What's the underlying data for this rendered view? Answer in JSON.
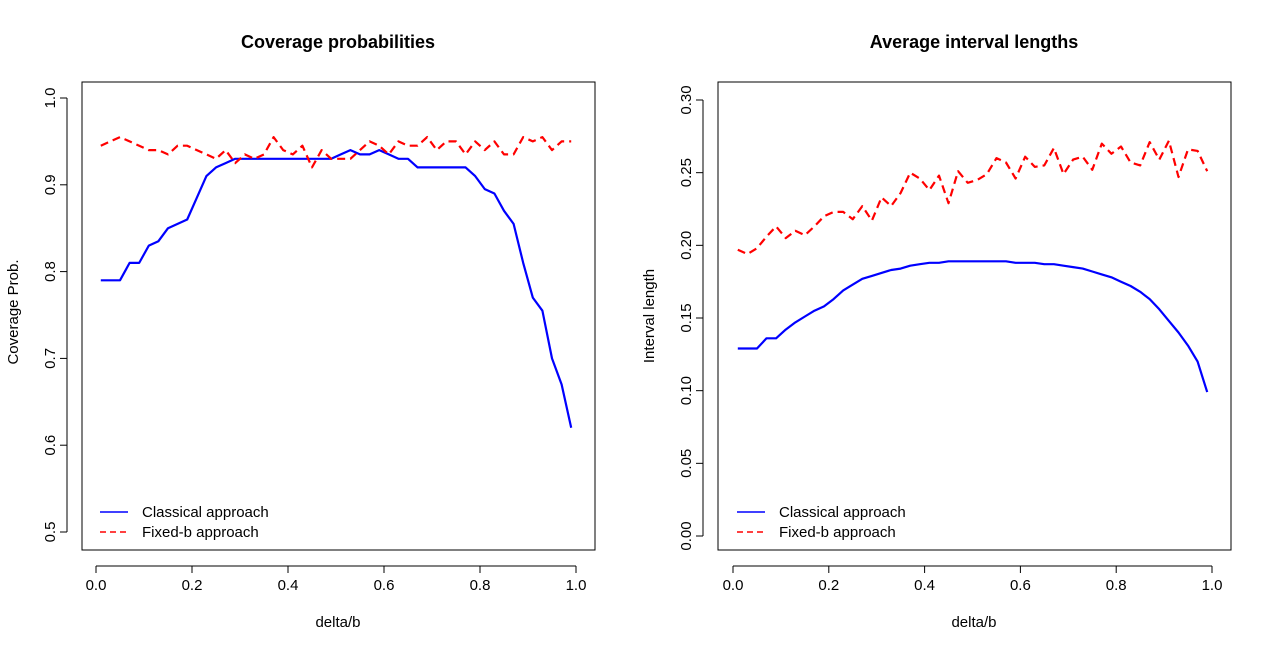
{
  "chart_data": [
    {
      "type": "line",
      "title": "Coverage probabilities",
      "xlabel": "delta/b",
      "ylabel": "Coverage Prob.",
      "xlim": [
        0.0,
        1.0
      ],
      "ylim": [
        0.5,
        1.0
      ],
      "xticks": [
        "0.0",
        "0.2",
        "0.4",
        "0.6",
        "0.8",
        "1.0"
      ],
      "yticks": [
        "0.5",
        "0.6",
        "0.7",
        "0.8",
        "0.9",
        "1.0"
      ],
      "legend_position": "bottom-left",
      "series": [
        {
          "name": "Classical approach",
          "color": "#0000ff",
          "dash": "solid",
          "x": [
            0.01,
            0.03,
            0.05,
            0.07,
            0.09,
            0.11,
            0.13,
            0.15,
            0.17,
            0.19,
            0.21,
            0.23,
            0.25,
            0.27,
            0.29,
            0.31,
            0.33,
            0.35,
            0.37,
            0.39,
            0.41,
            0.43,
            0.45,
            0.47,
            0.49,
            0.51,
            0.53,
            0.55,
            0.57,
            0.59,
            0.61,
            0.63,
            0.65,
            0.67,
            0.69,
            0.71,
            0.73,
            0.75,
            0.77,
            0.79,
            0.81,
            0.83,
            0.85,
            0.87,
            0.89,
            0.91,
            0.93,
            0.95,
            0.97,
            0.99
          ],
          "y": [
            0.79,
            0.79,
            0.79,
            0.81,
            0.81,
            0.83,
            0.835,
            0.85,
            0.855,
            0.86,
            0.885,
            0.91,
            0.92,
            0.925,
            0.93,
            0.93,
            0.93,
            0.93,
            0.93,
            0.93,
            0.93,
            0.93,
            0.93,
            0.93,
            0.93,
            0.935,
            0.94,
            0.935,
            0.935,
            0.94,
            0.935,
            0.93,
            0.93,
            0.92,
            0.92,
            0.92,
            0.92,
            0.92,
            0.92,
            0.91,
            0.895,
            0.89,
            0.87,
            0.855,
            0.81,
            0.77,
            0.755,
            0.7,
            0.67,
            0.62
          ]
        },
        {
          "name": "Fixed-b approach",
          "color": "#ff0000",
          "dash": "dashed",
          "x": [
            0.01,
            0.03,
            0.05,
            0.07,
            0.09,
            0.11,
            0.13,
            0.15,
            0.17,
            0.19,
            0.21,
            0.23,
            0.25,
            0.27,
            0.29,
            0.31,
            0.33,
            0.35,
            0.37,
            0.39,
            0.41,
            0.43,
            0.45,
            0.47,
            0.49,
            0.51,
            0.53,
            0.55,
            0.57,
            0.59,
            0.61,
            0.63,
            0.65,
            0.67,
            0.69,
            0.71,
            0.73,
            0.75,
            0.77,
            0.79,
            0.81,
            0.83,
            0.85,
            0.87,
            0.89,
            0.91,
            0.93,
            0.95,
            0.97,
            0.99
          ],
          "y": [
            0.945,
            0.95,
            0.955,
            0.95,
            0.945,
            0.94,
            0.94,
            0.935,
            0.945,
            0.945,
            0.94,
            0.935,
            0.93,
            0.94,
            0.925,
            0.935,
            0.93,
            0.935,
            0.955,
            0.94,
            0.935,
            0.945,
            0.92,
            0.94,
            0.93,
            0.93,
            0.93,
            0.94,
            0.95,
            0.945,
            0.935,
            0.95,
            0.945,
            0.945,
            0.955,
            0.94,
            0.95,
            0.95,
            0.935,
            0.95,
            0.94,
            0.95,
            0.935,
            0.935,
            0.955,
            0.95,
            0.955,
            0.94,
            0.95,
            0.95
          ]
        }
      ]
    },
    {
      "type": "line",
      "title": "Average interval lengths",
      "xlabel": "delta/b",
      "ylabel": "Interval length",
      "xlim": [
        0.0,
        1.0
      ],
      "ylim": [
        0.0,
        0.3
      ],
      "xticks": [
        "0.0",
        "0.2",
        "0.4",
        "0.6",
        "0.8",
        "1.0"
      ],
      "yticks": [
        "0.00",
        "0.05",
        "0.10",
        "0.15",
        "0.20",
        "0.25",
        "0.30"
      ],
      "legend_position": "bottom-left",
      "series": [
        {
          "name": "Classical approach",
          "color": "#0000ff",
          "dash": "solid",
          "x": [
            0.01,
            0.03,
            0.05,
            0.07,
            0.09,
            0.11,
            0.13,
            0.15,
            0.17,
            0.19,
            0.21,
            0.23,
            0.25,
            0.27,
            0.29,
            0.31,
            0.33,
            0.35,
            0.37,
            0.39,
            0.41,
            0.43,
            0.45,
            0.47,
            0.49,
            0.51,
            0.53,
            0.55,
            0.57,
            0.59,
            0.61,
            0.63,
            0.65,
            0.67,
            0.69,
            0.71,
            0.73,
            0.75,
            0.77,
            0.79,
            0.81,
            0.83,
            0.85,
            0.87,
            0.89,
            0.91,
            0.93,
            0.95,
            0.97,
            0.99
          ],
          "y": [
            0.129,
            0.129,
            0.129,
            0.136,
            0.136,
            0.142,
            0.147,
            0.151,
            0.155,
            0.158,
            0.163,
            0.169,
            0.173,
            0.177,
            0.179,
            0.181,
            0.183,
            0.184,
            0.186,
            0.187,
            0.188,
            0.188,
            0.189,
            0.189,
            0.189,
            0.189,
            0.189,
            0.189,
            0.189,
            0.188,
            0.188,
            0.188,
            0.187,
            0.187,
            0.186,
            0.185,
            0.184,
            0.182,
            0.18,
            0.178,
            0.175,
            0.172,
            0.168,
            0.163,
            0.156,
            0.148,
            0.14,
            0.131,
            0.12,
            0.099
          ]
        },
        {
          "name": "Fixed-b approach",
          "color": "#ff0000",
          "dash": "dashed",
          "x": [
            0.01,
            0.03,
            0.05,
            0.07,
            0.09,
            0.11,
            0.13,
            0.15,
            0.17,
            0.19,
            0.21,
            0.23,
            0.25,
            0.27,
            0.29,
            0.31,
            0.33,
            0.35,
            0.37,
            0.39,
            0.41,
            0.43,
            0.45,
            0.47,
            0.49,
            0.51,
            0.53,
            0.55,
            0.57,
            0.59,
            0.61,
            0.63,
            0.65,
            0.67,
            0.69,
            0.71,
            0.73,
            0.75,
            0.77,
            0.79,
            0.81,
            0.83,
            0.85,
            0.87,
            0.89,
            0.91,
            0.93,
            0.95,
            0.97,
            0.99
          ],
          "y": [
            0.197,
            0.194,
            0.198,
            0.206,
            0.213,
            0.205,
            0.21,
            0.207,
            0.213,
            0.22,
            0.223,
            0.223,
            0.218,
            0.227,
            0.217,
            0.233,
            0.227,
            0.236,
            0.25,
            0.246,
            0.238,
            0.248,
            0.229,
            0.251,
            0.243,
            0.245,
            0.249,
            0.26,
            0.257,
            0.246,
            0.261,
            0.254,
            0.255,
            0.267,
            0.249,
            0.259,
            0.261,
            0.252,
            0.27,
            0.263,
            0.268,
            0.257,
            0.255,
            0.271,
            0.259,
            0.272,
            0.247,
            0.266,
            0.265,
            0.251
          ]
        }
      ]
    }
  ]
}
